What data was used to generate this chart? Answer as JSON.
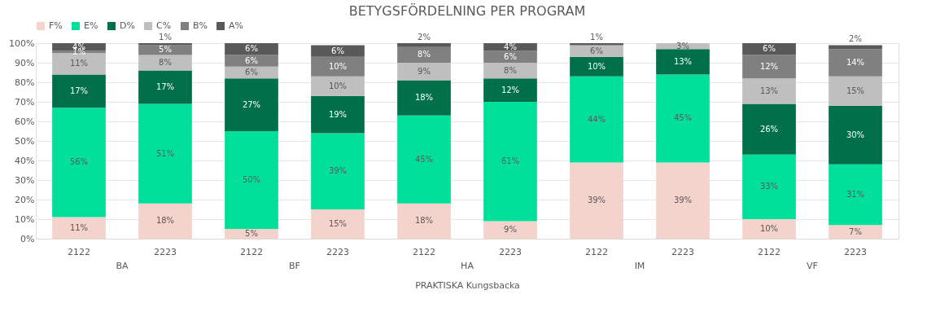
{
  "chart_data": {
    "type": "bar",
    "title": "BETYGSFÖRDELNING PER PROGRAM",
    "xlabel": "PRAKTISKA Kungsbacka",
    "stacked": true,
    "legend": "top",
    "grid": "y",
    "categories": [
      "2122",
      "2223",
      "2122",
      "2223",
      "2122",
      "2223",
      "2122",
      "2223",
      "2122",
      "2223"
    ],
    "annotations": [
      "BA",
      "BF",
      "HA",
      "IM",
      "VF"
    ],
    "ylim": [
      0,
      100
    ],
    "yticks": [
      {
        "value": 0,
        "label": "0%"
      },
      {
        "value": 10,
        "label": "10%"
      },
      {
        "value": 20,
        "label": "20%"
      },
      {
        "value": 30,
        "label": "30%"
      },
      {
        "value": 40,
        "label": "40%"
      },
      {
        "value": 50,
        "label": "50%"
      },
      {
        "value": 60,
        "label": "60%"
      },
      {
        "value": 70,
        "label": "70%"
      },
      {
        "value": 80,
        "label": "80%"
      },
      {
        "value": 90,
        "label": "90%"
      },
      {
        "value": 100,
        "label": "100%"
      }
    ],
    "series": [
      {
        "name": "F%",
        "color": "#f4d3cc",
        "values": [
          11,
          18,
          5,
          15,
          18,
          9,
          39,
          39,
          10,
          7
        ],
        "value_labels": [
          "11%",
          "18%",
          "5%",
          "15%",
          "18%",
          "9%",
          "39%",
          "39%",
          "10%",
          "7%"
        ]
      },
      {
        "name": "E%",
        "color": "#00e09a",
        "values": [
          56,
          51,
          50,
          39,
          45,
          61,
          44,
          45,
          33,
          31
        ],
        "value_labels": [
          "56%",
          "51%",
          "50%",
          "39%",
          "45%",
          "61%",
          "44%",
          "45%",
          "33%",
          "31%"
        ]
      },
      {
        "name": "D%",
        "color": "#00704a",
        "values": [
          17,
          17,
          27,
          19,
          18,
          12,
          10,
          13,
          26,
          30
        ],
        "value_labels": [
          "17%",
          "17%",
          "27%",
          "19%",
          "18%",
          "12%",
          "10%",
          "13%",
          "26%",
          "30%"
        ]
      },
      {
        "name": "C%",
        "color": "#bfbfbf",
        "values": [
          11,
          8,
          6,
          10,
          9,
          8,
          6,
          3,
          13,
          15
        ],
        "value_labels": [
          "11%",
          "8%",
          "6%",
          "10%",
          "9%",
          "8%",
          "6%",
          "3%",
          "13%",
          "15%"
        ]
      },
      {
        "name": "B%",
        "color": "#808080",
        "values": [
          1,
          5,
          6,
          10,
          8,
          6,
          null,
          null,
          12,
          14
        ],
        "value_labels": [
          "1%",
          "5%",
          "6%",
          "10%",
          "8%",
          "6%",
          null,
          null,
          "12%",
          "14%"
        ]
      },
      {
        "name": "A%",
        "color": "#595959",
        "values": [
          4,
          1,
          6,
          6,
          2,
          4,
          1,
          null,
          6,
          2
        ],
        "value_labels": [
          "4%",
          "1%",
          "6%",
          "6%",
          "2%",
          "4%",
          "1%",
          null,
          "6%",
          "2%"
        ]
      }
    ]
  }
}
